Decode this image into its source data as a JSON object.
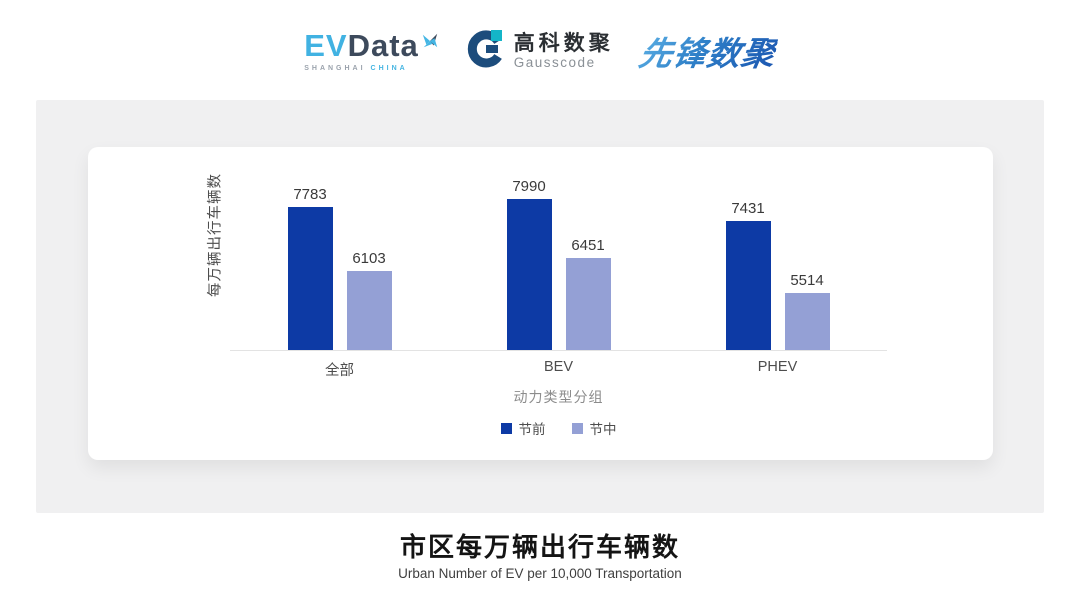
{
  "header": {
    "evdata_logo": {
      "ev": "EV",
      "data": "Data",
      "sub_left": "SHANGHAI",
      "sub_right": "CHINA"
    },
    "gausscode_logo": {
      "cn_name": "高科数聚",
      "en_name": "Gausscode"
    },
    "pioneer_logo": {
      "text": "先锋数聚"
    }
  },
  "chart_data": {
    "type": "bar",
    "categories": [
      "全部",
      "BEV",
      "PHEV"
    ],
    "series": [
      {
        "name": "节前",
        "color": "#0d3aa5",
        "values": [
          7783,
          7990,
          7431
        ]
      },
      {
        "name": "节中",
        "color": "#94a0d5",
        "values": [
          6103,
          6451,
          5514
        ]
      }
    ],
    "ylabel": "每万辆出行车辆数",
    "xlabel": "动力类型分组",
    "ylim": [
      4000,
      8400
    ],
    "grid": false,
    "legend_position": "bottom",
    "value_labels": true
  },
  "footer": {
    "title": "市区每万辆出行车辆数",
    "subtitle": "Urban Number of EV per 10,000 Transportation"
  },
  "colors": {
    "panel_bg": "#f0f0f1",
    "card_bg": "#ffffff",
    "axis_line": "#e3e3e3",
    "evdata_blue": "#41b2e2",
    "evdata_dark": "#3d4a5c",
    "gauss_ring": "#1c4c7c",
    "gauss_teal": "#14b5c8",
    "pioneer_blue": "#2f80c8"
  }
}
